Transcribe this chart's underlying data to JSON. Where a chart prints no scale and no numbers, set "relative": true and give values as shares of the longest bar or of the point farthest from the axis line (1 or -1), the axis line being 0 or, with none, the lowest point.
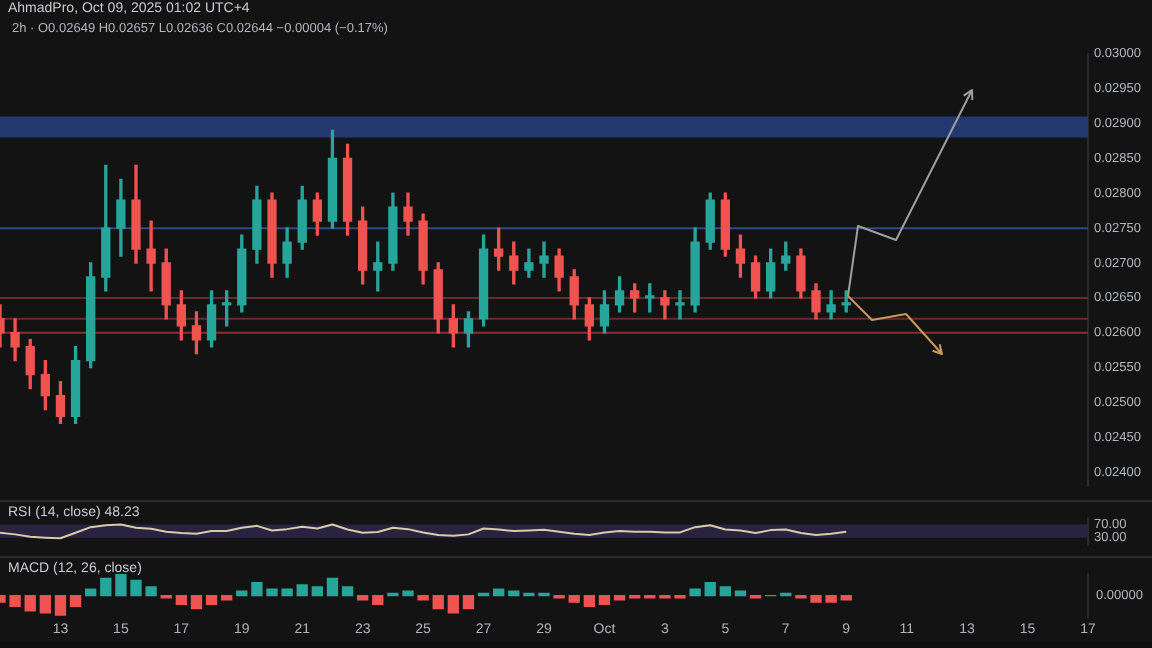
{
  "chart_data": [
    {
      "type": "candlestick",
      "title": "AhmadPro, Oct 09, 2025 01:02 UTC+4",
      "subtitle": "2h · O0.02649 H0.02657 L0.02636 C0.02644 −0.00004 (−0.17%)",
      "x": [
        "2025-09-11T00:00",
        "2025-09-11T12:00",
        "2025-09-12T00:00",
        "2025-09-12T12:00",
        "2025-09-13T00:00",
        "2025-09-13T12:00",
        "2025-09-14T00:00",
        "2025-09-14T12:00",
        "2025-09-15T00:00",
        "2025-09-15T12:00",
        "2025-09-16T00:00",
        "2025-09-16T12:00",
        "2025-09-17T00:00",
        "2025-09-17T12:00",
        "2025-09-18T00:00",
        "2025-09-18T12:00",
        "2025-09-19T00:00",
        "2025-09-19T12:00",
        "2025-09-20T00:00",
        "2025-09-20T12:00",
        "2025-09-21T00:00",
        "2025-09-21T12:00",
        "2025-09-22T00:00",
        "2025-09-22T12:00",
        "2025-09-23T00:00",
        "2025-09-23T12:00",
        "2025-09-24T00:00",
        "2025-09-24T12:00",
        "2025-09-25T00:00",
        "2025-09-25T12:00",
        "2025-09-26T00:00",
        "2025-09-26T12:00",
        "2025-09-27T00:00",
        "2025-09-27T12:00",
        "2025-09-28T00:00",
        "2025-09-28T12:00",
        "2025-09-29T00:00",
        "2025-09-29T12:00",
        "2025-09-30T00:00",
        "2025-09-30T12:00",
        "2025-10-01T00:00",
        "2025-10-01T12:00",
        "2025-10-02T00:00",
        "2025-10-02T12:00",
        "2025-10-03T00:00",
        "2025-10-03T12:00",
        "2025-10-04T00:00",
        "2025-10-04T12:00",
        "2025-10-05T00:00",
        "2025-10-05T12:00",
        "2025-10-06T00:00",
        "2025-10-06T12:00",
        "2025-10-07T00:00",
        "2025-10-07T12:00",
        "2025-10-08T00:00",
        "2025-10-08T12:00",
        "2025-10-09T00:00"
      ],
      "ohlc": [
        [
          0.0262,
          0.0264,
          0.0258,
          0.026
        ],
        [
          0.026,
          0.0262,
          0.0256,
          0.0258
        ],
        [
          0.0258,
          0.0259,
          0.0252,
          0.0254
        ],
        [
          0.0254,
          0.0256,
          0.0249,
          0.0251
        ],
        [
          0.0251,
          0.0253,
          0.0247,
          0.0248
        ],
        [
          0.0248,
          0.0258,
          0.0247,
          0.0256
        ],
        [
          0.0256,
          0.027,
          0.0255,
          0.0268
        ],
        [
          0.0268,
          0.0284,
          0.0266,
          0.0275
        ],
        [
          0.0275,
          0.0282,
          0.0271,
          0.0279
        ],
        [
          0.0279,
          0.0284,
          0.027,
          0.0272
        ],
        [
          0.0272,
          0.0276,
          0.0266,
          0.027
        ],
        [
          0.027,
          0.0272,
          0.0262,
          0.0264
        ],
        [
          0.0264,
          0.0266,
          0.0259,
          0.0261
        ],
        [
          0.0261,
          0.0263,
          0.0257,
          0.0259
        ],
        [
          0.0259,
          0.0266,
          0.0258,
          0.0264
        ],
        [
          0.0264,
          0.0266,
          0.0261,
          0.0264
        ],
        [
          0.0264,
          0.0274,
          0.0263,
          0.0272
        ],
        [
          0.0272,
          0.0281,
          0.027,
          0.0279
        ],
        [
          0.0279,
          0.028,
          0.0268,
          0.027
        ],
        [
          0.027,
          0.0275,
          0.0268,
          0.0273
        ],
        [
          0.0273,
          0.0281,
          0.0272,
          0.0279
        ],
        [
          0.0279,
          0.028,
          0.0274,
          0.0276
        ],
        [
          0.0276,
          0.0289,
          0.0275,
          0.0285
        ],
        [
          0.0285,
          0.0287,
          0.0274,
          0.0276
        ],
        [
          0.0276,
          0.0278,
          0.0267,
          0.0269
        ],
        [
          0.0269,
          0.0273,
          0.0266,
          0.027
        ],
        [
          0.027,
          0.028,
          0.0269,
          0.0278
        ],
        [
          0.0278,
          0.028,
          0.0274,
          0.0276
        ],
        [
          0.0276,
          0.0277,
          0.0267,
          0.0269
        ],
        [
          0.0269,
          0.027,
          0.026,
          0.0262
        ],
        [
          0.0262,
          0.0264,
          0.0258,
          0.026
        ],
        [
          0.026,
          0.0263,
          0.0258,
          0.0262
        ],
        [
          0.0262,
          0.0274,
          0.0261,
          0.0272
        ],
        [
          0.0272,
          0.0275,
          0.0269,
          0.0271
        ],
        [
          0.0271,
          0.0273,
          0.0267,
          0.0269
        ],
        [
          0.0269,
          0.0272,
          0.0268,
          0.027
        ],
        [
          0.027,
          0.0273,
          0.0268,
          0.0271
        ],
        [
          0.0271,
          0.0272,
          0.0266,
          0.0268
        ],
        [
          0.0268,
          0.0269,
          0.0262,
          0.0264
        ],
        [
          0.0264,
          0.0265,
          0.0259,
          0.0261
        ],
        [
          0.0261,
          0.0266,
          0.026,
          0.0264
        ],
        [
          0.0264,
          0.0268,
          0.0263,
          0.0266
        ],
        [
          0.0266,
          0.0267,
          0.0263,
          0.0265
        ],
        [
          0.0265,
          0.0267,
          0.0263,
          0.0265
        ],
        [
          0.0265,
          0.0266,
          0.0262,
          0.0264
        ],
        [
          0.0264,
          0.0266,
          0.0262,
          0.0264
        ],
        [
          0.0264,
          0.0275,
          0.0263,
          0.0273
        ],
        [
          0.0273,
          0.028,
          0.0272,
          0.0279
        ],
        [
          0.0279,
          0.028,
          0.0271,
          0.0272
        ],
        [
          0.0272,
          0.0274,
          0.0268,
          0.027
        ],
        [
          0.027,
          0.0271,
          0.0265,
          0.0266
        ],
        [
          0.0266,
          0.0272,
          0.0265,
          0.027
        ],
        [
          0.027,
          0.0273,
          0.0269,
          0.0271
        ],
        [
          0.0271,
          0.0272,
          0.0265,
          0.0266
        ],
        [
          0.0266,
          0.0267,
          0.0262,
          0.0263
        ],
        [
          0.0263,
          0.0266,
          0.0262,
          0.0264
        ],
        [
          0.0264,
          0.0266,
          0.0263,
          0.0264
        ]
      ],
      "bands": [
        {
          "axis": "y",
          "from": 0.0288,
          "to": 0.0291,
          "color": "#23386e"
        }
      ],
      "ref_lines": [
        {
          "axis": "y",
          "value": 0.0275,
          "color": "#2f4a8a"
        },
        {
          "axis": "y",
          "value": 0.0265,
          "color": "#6b2a2a"
        },
        {
          "axis": "y",
          "value": 0.0262,
          "color": "#6b2a2a"
        },
        {
          "axis": "y",
          "value": 0.026,
          "color": "#8a2f2f"
        }
      ],
      "xlim": [
        "2025-09-11T00:00",
        "2025-10-17T00:00"
      ],
      "ylim": [
        0.0238,
        0.03
      ],
      "yticks": [
        {
          "value": 0.024,
          "label": "0.02400"
        },
        {
          "value": 0.0245,
          "label": "0.02450"
        },
        {
          "value": 0.025,
          "label": "0.02500"
        },
        {
          "value": 0.0255,
          "label": "0.02550"
        },
        {
          "value": 0.026,
          "label": "0.02600"
        },
        {
          "value": 0.0265,
          "label": "0.02650"
        },
        {
          "value": 0.027,
          "label": "0.02700"
        },
        {
          "value": 0.0275,
          "label": "0.02750"
        },
        {
          "value": 0.028,
          "label": "0.02800"
        },
        {
          "value": 0.0285,
          "label": "0.02850"
        },
        {
          "value": 0.029,
          "label": "0.02900"
        },
        {
          "value": 0.0295,
          "label": "0.02950"
        },
        {
          "value": 0.03,
          "label": "0.03000"
        }
      ],
      "tick_labels": "y"
    },
    {
      "type": "line",
      "title": "RSI (14, close) 48.23",
      "x": [
        "2025-09-11T00:00",
        "2025-09-11T12:00",
        "2025-09-12T00:00",
        "2025-09-12T12:00",
        "2025-09-13T00:00",
        "2025-09-13T12:00",
        "2025-09-14T00:00",
        "2025-09-14T12:00",
        "2025-09-15T00:00",
        "2025-09-15T12:00",
        "2025-09-16T00:00",
        "2025-09-16T12:00",
        "2025-09-17T00:00",
        "2025-09-17T12:00",
        "2025-09-18T00:00",
        "2025-09-18T12:00",
        "2025-09-19T00:00",
        "2025-09-19T12:00",
        "2025-09-20T00:00",
        "2025-09-20T12:00",
        "2025-09-21T00:00",
        "2025-09-21T12:00",
        "2025-09-22T00:00",
        "2025-09-22T12:00",
        "2025-09-23T00:00",
        "2025-09-23T12:00",
        "2025-09-24T00:00",
        "2025-09-24T12:00",
        "2025-09-25T00:00",
        "2025-09-25T12:00",
        "2025-09-26T00:00",
        "2025-09-26T12:00",
        "2025-09-27T00:00",
        "2025-09-27T12:00",
        "2025-09-28T00:00",
        "2025-09-28T12:00",
        "2025-09-29T00:00",
        "2025-09-29T12:00",
        "2025-09-30T00:00",
        "2025-09-30T12:00",
        "2025-10-01T00:00",
        "2025-10-01T12:00",
        "2025-10-02T00:00",
        "2025-10-02T12:00",
        "2025-10-03T00:00",
        "2025-10-03T12:00",
        "2025-10-04T00:00",
        "2025-10-04T12:00",
        "2025-10-05T00:00",
        "2025-10-05T12:00",
        "2025-10-06T00:00",
        "2025-10-06T12:00",
        "2025-10-07T00:00",
        "2025-10-07T12:00",
        "2025-10-08T00:00",
        "2025-10-08T12:00",
        "2025-10-09T00:00"
      ],
      "series": [
        {
          "color": "#d8cba8",
          "values": [
            45,
            40,
            33,
            30,
            28,
            45,
            62,
            68,
            70,
            60,
            57,
            48,
            44,
            42,
            50,
            50,
            60,
            66,
            52,
            56,
            63,
            58,
            70,
            55,
            45,
            47,
            60,
            56,
            46,
            38,
            36,
            40,
            58,
            55,
            50,
            52,
            54,
            48,
            42,
            38,
            46,
            50,
            48,
            48,
            46,
            46,
            62,
            68,
            55,
            52,
            44,
            53,
            55,
            44,
            38,
            42,
            48
          ]
        }
      ],
      "bands": [
        {
          "axis": "y",
          "from": 30,
          "to": 70,
          "color": "#2a2340"
        }
      ],
      "xlim": [
        "2025-09-11T00:00",
        "2025-10-17T00:00"
      ],
      "ylim": [
        10,
        90
      ],
      "yticks": [
        {
          "value": 30,
          "label": "30.00"
        },
        {
          "value": 70,
          "label": "70.00"
        }
      ],
      "tick_labels": "y"
    },
    {
      "type": "bar",
      "title": "MACD (12, 26, close)",
      "relative": true,
      "annotations": [
        "0.00000"
      ],
      "x": [
        "2025-09-11T00:00",
        "2025-09-11T12:00",
        "2025-09-12T00:00",
        "2025-09-12T12:00",
        "2025-09-13T00:00",
        "2025-09-13T12:00",
        "2025-09-14T00:00",
        "2025-09-14T12:00",
        "2025-09-15T00:00",
        "2025-09-15T12:00",
        "2025-09-16T00:00",
        "2025-09-16T12:00",
        "2025-09-17T00:00",
        "2025-09-17T12:00",
        "2025-09-18T00:00",
        "2025-09-18T12:00",
        "2025-09-19T00:00",
        "2025-09-19T12:00",
        "2025-09-20T00:00",
        "2025-09-20T12:00",
        "2025-09-21T00:00",
        "2025-09-21T12:00",
        "2025-09-22T00:00",
        "2025-09-22T12:00",
        "2025-09-23T00:00",
        "2025-09-23T12:00",
        "2025-09-24T00:00",
        "2025-09-24T12:00",
        "2025-09-25T00:00",
        "2025-09-25T12:00",
        "2025-09-26T00:00",
        "2025-09-26T12:00",
        "2025-09-27T00:00",
        "2025-09-27T12:00",
        "2025-09-28T00:00",
        "2025-09-28T12:00",
        "2025-09-29T00:00",
        "2025-09-29T12:00",
        "2025-09-30T00:00",
        "2025-09-30T12:00",
        "2025-10-01T00:00",
        "2025-10-01T12:00",
        "2025-10-02T00:00",
        "2025-10-02T12:00",
        "2025-10-03T00:00",
        "2025-10-03T12:00",
        "2025-10-04T00:00",
        "2025-10-04T12:00",
        "2025-10-05T00:00",
        "2025-10-05T12:00",
        "2025-10-06T00:00",
        "2025-10-06T12:00",
        "2025-10-07T00:00",
        "2025-10-07T12:00",
        "2025-10-08T00:00",
        "2025-10-08T12:00",
        "2025-10-09T00:00"
      ],
      "values": [
        -0.3,
        -0.5,
        -0.7,
        -0.8,
        -0.9,
        -0.5,
        0.3,
        0.8,
        1,
        0.7,
        0.4,
        -0.1,
        -0.4,
        -0.6,
        -0.4,
        -0.2,
        0.2,
        0.6,
        0.3,
        0.3,
        0.5,
        0.4,
        0.8,
        0.4,
        -0.2,
        -0.4,
        0.1,
        0.2,
        -0.2,
        -0.6,
        -0.8,
        -0.6,
        0.1,
        0.3,
        0.2,
        0.1,
        0.1,
        -0.1,
        -0.3,
        -0.5,
        -0.4,
        -0.2,
        -0.1,
        -0.1,
        -0.1,
        -0.1,
        0.3,
        0.6,
        0.4,
        0.2,
        -0.1,
        0,
        0.1,
        -0.1,
        -0.3,
        -0.3,
        -0.2
      ],
      "colors": [
        "#ef5350",
        "#ef5350",
        "#ef5350",
        "#ef5350",
        "#ef5350",
        "#ef5350",
        "#26a69a",
        "#26a69a",
        "#26a69a",
        "#26a69a",
        "#26a69a",
        "#ef5350",
        "#ef5350",
        "#ef5350",
        "#ef5350",
        "#ef5350",
        "#26a69a",
        "#26a69a",
        "#26a69a",
        "#26a69a",
        "#26a69a",
        "#26a69a",
        "#26a69a",
        "#26a69a",
        "#ef5350",
        "#ef5350",
        "#26a69a",
        "#26a69a",
        "#ef5350",
        "#ef5350",
        "#ef5350",
        "#ef5350",
        "#26a69a",
        "#26a69a",
        "#26a69a",
        "#26a69a",
        "#26a69a",
        "#ef5350",
        "#ef5350",
        "#ef5350",
        "#ef5350",
        "#ef5350",
        "#ef5350",
        "#ef5350",
        "#ef5350",
        "#ef5350",
        "#26a69a",
        "#26a69a",
        "#26a69a",
        "#26a69a",
        "#ef5350",
        "#26a69a",
        "#26a69a",
        "#ef5350",
        "#ef5350",
        "#ef5350",
        "#ef5350"
      ],
      "xlim": [
        "2025-09-11T00:00",
        "2025-10-17T00:00"
      ],
      "xticks": [
        {
          "value": "2025-09-13",
          "label": "13"
        },
        {
          "value": "2025-09-15",
          "label": "15"
        },
        {
          "value": "2025-09-17",
          "label": "17"
        },
        {
          "value": "2025-09-19",
          "label": "19"
        },
        {
          "value": "2025-09-21",
          "label": "21"
        },
        {
          "value": "2025-09-23",
          "label": "23"
        },
        {
          "value": "2025-09-25",
          "label": "25"
        },
        {
          "value": "2025-09-27",
          "label": "27"
        },
        {
          "value": "2025-09-29",
          "label": "29"
        },
        {
          "value": "2025-10-01",
          "label": "Oct"
        },
        {
          "value": "2025-10-03",
          "label": "3"
        },
        {
          "value": "2025-10-05",
          "label": "5"
        },
        {
          "value": "2025-10-07",
          "label": "7"
        },
        {
          "value": "2025-10-09",
          "label": "9"
        },
        {
          "value": "2025-10-11",
          "label": "11"
        },
        {
          "value": "2025-10-13",
          "label": "13"
        },
        {
          "value": "2025-10-15",
          "label": "15"
        },
        {
          "value": "2025-10-17",
          "label": "17"
        }
      ],
      "tick_labels": "x"
    }
  ]
}
